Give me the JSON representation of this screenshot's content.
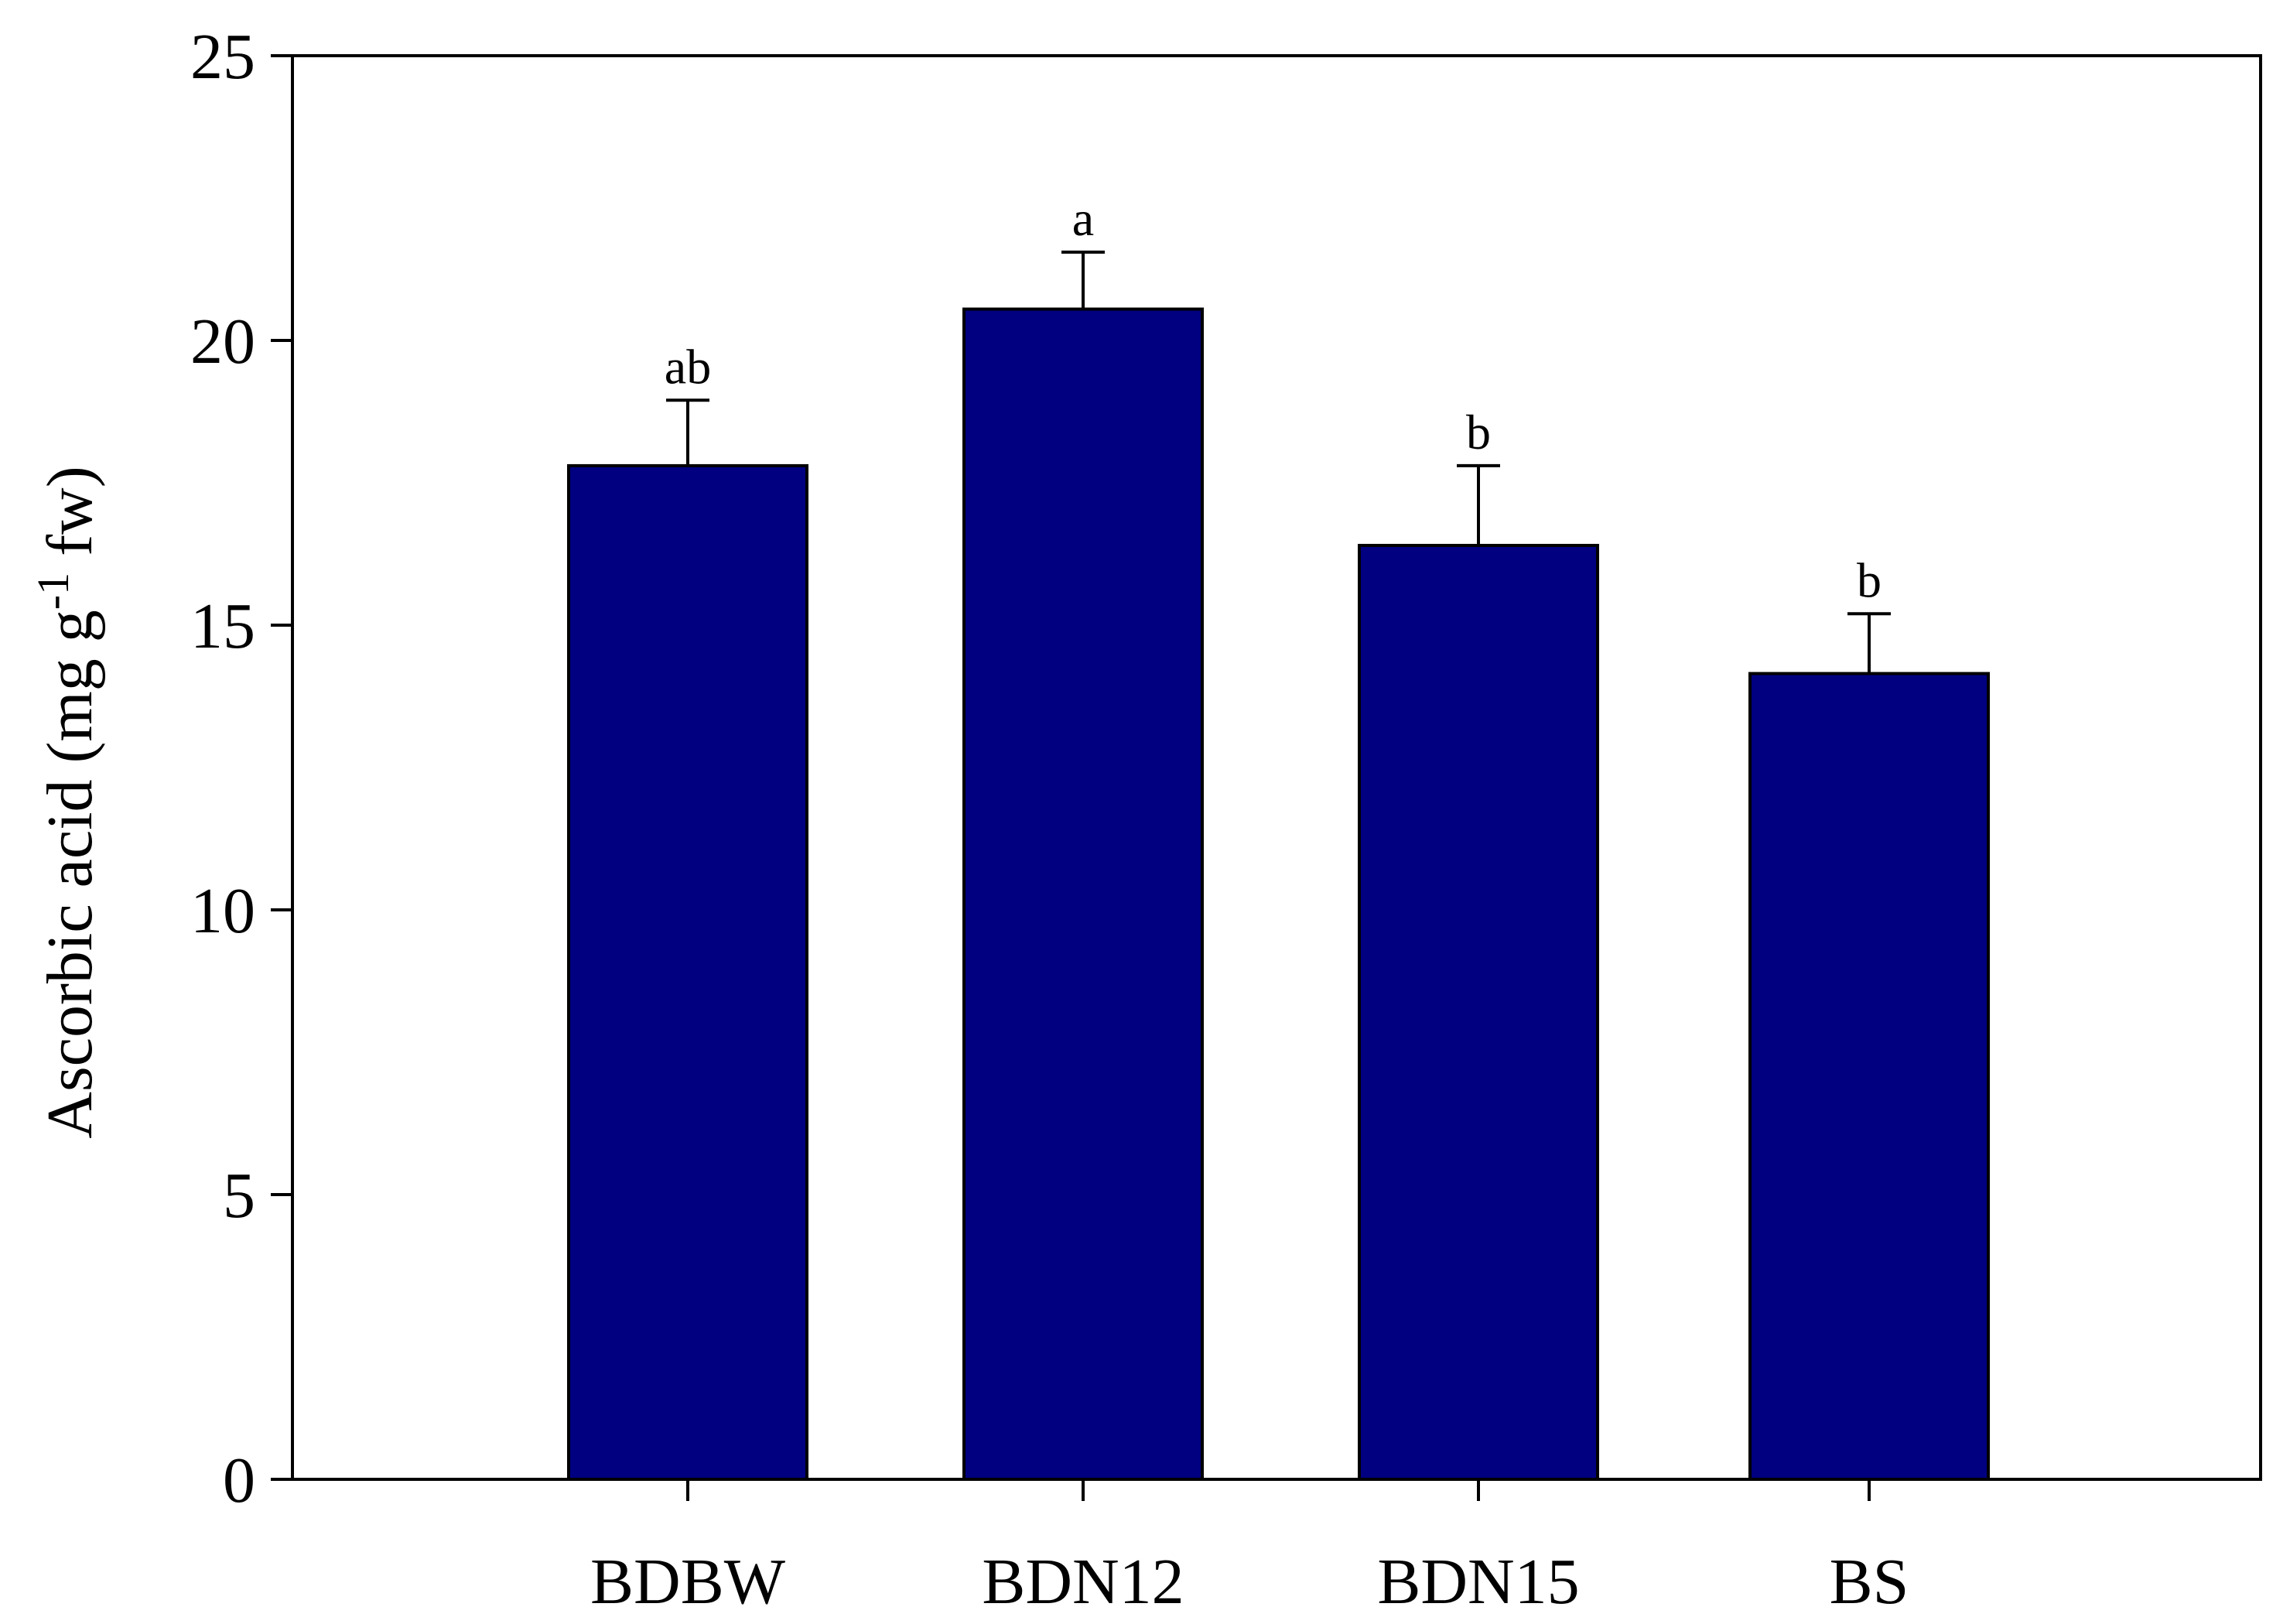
{
  "chart_data": {
    "type": "bar",
    "categories": [
      "BDBW",
      "BDN12",
      "BDN15",
      "BS"
    ],
    "series": [
      {
        "values": [
          17.8,
          20.55,
          16.4,
          14.15
        ],
        "errors": [
          1.15,
          1.0,
          1.4,
          1.05
        ],
        "significance": [
          "ab",
          "a",
          "b",
          "b"
        ]
      }
    ],
    "ylabel": {
      "main": "Ascorbic acid (mg g",
      "superscript": "-1",
      "suffix": " fw)"
    },
    "xlabel": "",
    "ylim": [
      0,
      25
    ],
    "yticks": [
      0,
      5,
      10,
      15,
      20,
      25
    ],
    "grid": false,
    "legend": "none",
    "colors": {
      "bar_fill": "#000080",
      "bar_stroke": "#000000",
      "axis": "#000000"
    }
  }
}
